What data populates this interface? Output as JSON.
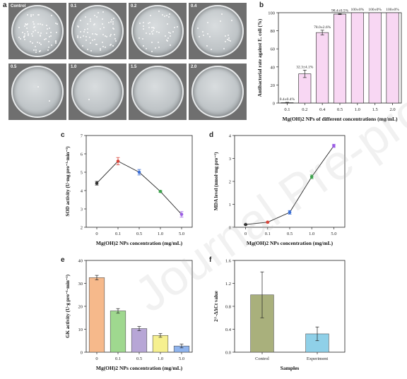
{
  "panels": {
    "a": "a",
    "b": "b",
    "c": "c",
    "d": "d",
    "e": "e",
    "f": "f"
  },
  "watermark": "Journal Pre-proof",
  "plates": {
    "labels": [
      "Control",
      "0.1",
      "0.2",
      "0.4",
      "0.5",
      "1.0",
      "1.5",
      "2.0"
    ],
    "colony_density": [
      70,
      65,
      45,
      20,
      2,
      1,
      0,
      0
    ]
  },
  "chart_data": [
    {
      "panel": "b",
      "type": "bar",
      "categories": [
        "0.1",
        "0.2",
        "0.4",
        "0.5",
        "1.0",
        "1.5",
        "2.0"
      ],
      "values": [
        0.4,
        32.3,
        78.0,
        98.4,
        100,
        100,
        100
      ],
      "errors": [
        0.4,
        4.1,
        2.6,
        0.5,
        0,
        0,
        0
      ],
      "data_labels": [
        "0.4±0.4%",
        "32.3±4.1%",
        "78.0±2.6%",
        "98.4±0.5%",
        "100±0%",
        "100±0%",
        "100±0%"
      ],
      "xlabel": "Mg(OH)2 NPs of different concentrations (mg/mL)",
      "ylabel": "Antibacterial rate against E. coli (%)",
      "ylim": [
        0,
        100
      ],
      "yticks": [
        0,
        20,
        40,
        60,
        80,
        100
      ],
      "bar_color": "#f8d7f3",
      "edge_color": "#222222"
    },
    {
      "panel": "c",
      "type": "line",
      "categories": [
        "0",
        "0.1",
        "0.5",
        "1.0",
        "5.0"
      ],
      "values": [
        4.4,
        5.6,
        5.0,
        3.95,
        2.7
      ],
      "errors": [
        0.1,
        0.2,
        0.15,
        0.05,
        0.15
      ],
      "point_colors": [
        "#333333",
        "#d8453a",
        "#3b6fd6",
        "#3aa24a",
        "#9b5de5"
      ],
      "xlabel": "Mg(OH)2 NPs concentration (mg/mL)",
      "ylabel": "SOD activity (U·mg pro⁻¹·min⁻¹)",
      "ylim": [
        2,
        7
      ],
      "yticks": [
        2,
        3,
        4,
        5,
        6,
        7
      ]
    },
    {
      "panel": "d",
      "type": "line",
      "categories": [
        "0",
        "0.1",
        "0.5",
        "1.0",
        "5.0"
      ],
      "values": [
        0.12,
        0.22,
        0.65,
        2.2,
        3.55
      ],
      "errors": [
        0.02,
        0.03,
        0.08,
        0.08,
        0.07
      ],
      "point_colors": [
        "#333333",
        "#d8453a",
        "#3b6fd6",
        "#3aa24a",
        "#9b5de5"
      ],
      "xlabel": "Mg(OH)2 NPs concentration (mg/mL)",
      "ylabel": "MDA level (nmol·mg pro⁻¹)",
      "ylim": [
        0,
        4
      ],
      "yticks": [
        0,
        1,
        2,
        3,
        4
      ]
    },
    {
      "panel": "e",
      "type": "bar",
      "categories": [
        "0",
        "0.1",
        "0.5",
        "1.0",
        "5.0"
      ],
      "values": [
        32.5,
        18.0,
        10.3,
        7.3,
        2.7
      ],
      "errors": [
        1.0,
        1.0,
        0.9,
        0.8,
        0.8
      ],
      "bar_colors": [
        "#f6b98b",
        "#9fd88f",
        "#b7a6d6",
        "#f6f08f",
        "#8fb4ee"
      ],
      "xlabel": "Mg(OH)2 NPs concentration (mg/mL)",
      "ylabel": "GK activity (U·g pro⁻¹·min⁻¹)",
      "ylim": [
        0,
        40
      ],
      "yticks": [
        0,
        10,
        20,
        30,
        40
      ]
    },
    {
      "panel": "f",
      "type": "bar",
      "categories": [
        "Control",
        "Experiment"
      ],
      "values": [
        1.0,
        0.32
      ],
      "errors": [
        0.4,
        0.12
      ],
      "bar_colors": [
        "#a9b07c",
        "#8fd0e8"
      ],
      "xlabel": "Samples",
      "ylabel": "2^-ΔΔCt value",
      "ylim": [
        0,
        1.6
      ],
      "yticks": [
        "0.0",
        "0.4",
        "0.8",
        "1.2",
        "1.6"
      ]
    }
  ]
}
